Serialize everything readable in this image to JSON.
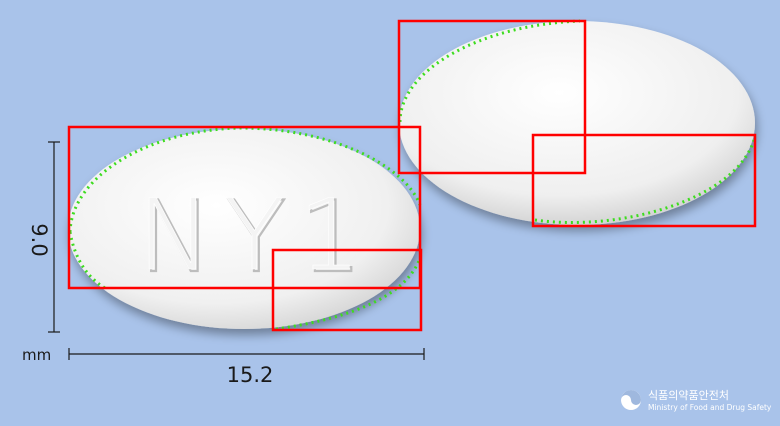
{
  "pill": {
    "imprint": "NY1",
    "color": "#f2f2f2"
  },
  "dimensions": {
    "length_mm": "15.2",
    "width_mm": "9.0",
    "unit": "mm"
  },
  "annotation": {
    "box_color": "#ff0000",
    "contour_color": "#3ddc1f"
  },
  "logo": {
    "icon": "taegeuk-emblem-icon",
    "korean_name": "식품의약품안전처",
    "english_name": "Ministry of Food and Drug Safety"
  }
}
